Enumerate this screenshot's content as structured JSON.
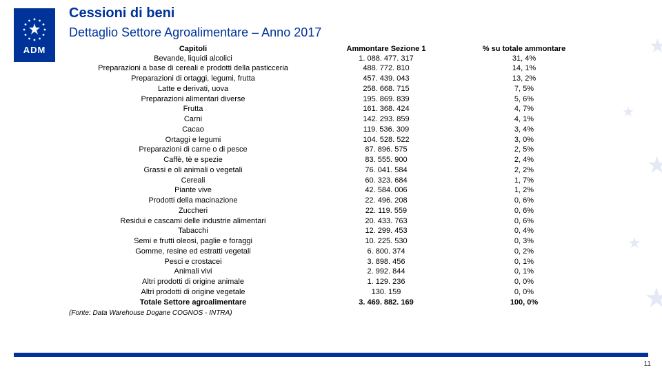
{
  "logo_text": "ADM",
  "title": "Cessioni di beni",
  "subtitle": "Dettaglio Settore Agroalimentare – Anno 2017",
  "table": {
    "columns": [
      "Capitoli",
      "Ammontare Sezione 1",
      "% su totale ammontare"
    ],
    "rows": [
      [
        "Bevande, liquidi alcolici",
        "1. 088. 477. 317",
        "31, 4%"
      ],
      [
        "Preparazioni a base di cereali e prodotti della pasticceria",
        "488. 772. 810",
        "14, 1%"
      ],
      [
        "Preparazioni di ortaggi, legumi, frutta",
        "457. 439. 043",
        "13, 2%"
      ],
      [
        "Latte e derivati, uova",
        "258. 668. 715",
        "7, 5%"
      ],
      [
        "Preparazioni alimentari diverse",
        "195. 869. 839",
        "5, 6%"
      ],
      [
        "Frutta",
        "161. 368. 424",
        "4, 7%"
      ],
      [
        "Carni",
        "142. 293. 859",
        "4, 1%"
      ],
      [
        "Cacao",
        "119. 536. 309",
        "3, 4%"
      ],
      [
        "Ortaggi e legumi",
        "104. 528. 522",
        "3, 0%"
      ],
      [
        "Preparazioni di carne o di pesce",
        "87. 896. 575",
        "2, 5%"
      ],
      [
        "Caffè, tè e spezie",
        "83. 555. 900",
        "2, 4%"
      ],
      [
        "Grassi e oli animali o vegetali",
        "76. 041. 584",
        "2, 2%"
      ],
      [
        "Cereali",
        "60. 323. 684",
        "1, 7%"
      ],
      [
        "Piante vive",
        "42. 584. 006",
        "1, 2%"
      ],
      [
        "Prodotti della macinazione",
        "22. 496. 208",
        "0, 6%"
      ],
      [
        "Zuccheri",
        "22. 119. 559",
        "0, 6%"
      ],
      [
        "Residui e cascami delle industrie alimentari",
        "20. 433. 763",
        "0, 6%"
      ],
      [
        "Tabacchi",
        "12. 299. 453",
        "0, 4%"
      ],
      [
        "Semi e frutti oleosi, paglie e foraggi",
        "10. 225. 530",
        "0, 3%"
      ],
      [
        "Gomme, resine ed estratti vegetali",
        "6. 800. 374",
        "0, 2%"
      ],
      [
        "Pesci e crostacei",
        "3. 898. 456",
        "0, 1%"
      ],
      [
        "Animali vivi",
        "2. 992. 844",
        "0, 1%"
      ],
      [
        "Altri prodotti di origine animale",
        "1. 129. 236",
        "0, 0%"
      ],
      [
        "Altri prodotti di origine vegetale",
        "130. 159",
        "0, 0%"
      ]
    ],
    "total": [
      "Totale Settore agroalimentare",
      "3. 469. 882. 169",
      "100, 0%"
    ]
  },
  "source_note": "(Fonte: Data Warehouse Dogane COGNOS - INTRA)",
  "page_number": "11",
  "colors": {
    "brand": "#003399",
    "bg_star": "#c9d6ef"
  }
}
